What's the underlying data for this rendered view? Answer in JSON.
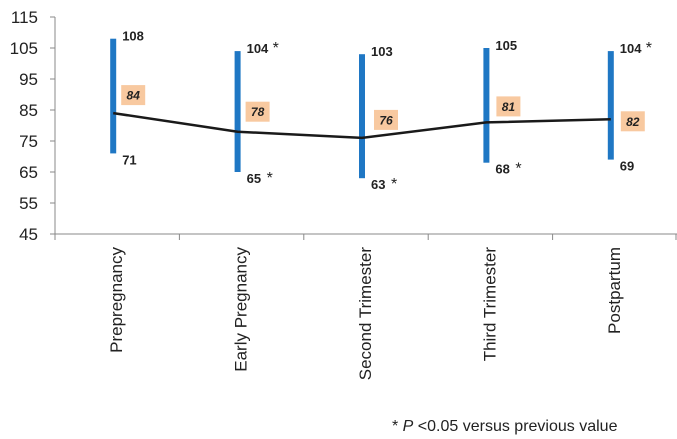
{
  "chart_data": {
    "type": "line",
    "subtype": "range-bars-with-mean-line",
    "title": "",
    "xlabel": "",
    "ylabel": "",
    "ylim": [
      45,
      115
    ],
    "yticks": [
      45,
      55,
      65,
      75,
      85,
      95,
      105,
      115
    ],
    "grid": false,
    "legend": "none",
    "categories": [
      "Prepregnancy",
      "Early Pregnancy",
      "Second Trimester",
      "Third Trimester",
      "Postpartum"
    ],
    "series": [
      {
        "values": [
          84,
          78,
          76,
          81,
          82
        ]
      }
    ],
    "ranges": [
      {
        "low": 71,
        "high": 108,
        "low_star": false,
        "high_star": false
      },
      {
        "low": 65,
        "high": 104,
        "low_star": true,
        "high_star": true
      },
      {
        "low": 63,
        "high": 103,
        "low_star": true,
        "high_star": false
      },
      {
        "low": 68,
        "high": 105,
        "low_star": true,
        "high_star": false
      },
      {
        "low": 69,
        "high": 104,
        "low_star": false,
        "high_star": true
      }
    ],
    "star_symbol": "*",
    "colors": {
      "range_bar": "#1f77c4",
      "mean_line": "#1a1a1a",
      "mean_label_bg": "#f8c9a0",
      "axis": "#888888"
    }
  },
  "footnote": {
    "star": "* ",
    "p": "P",
    "text": " <0.05 versus previous value"
  }
}
